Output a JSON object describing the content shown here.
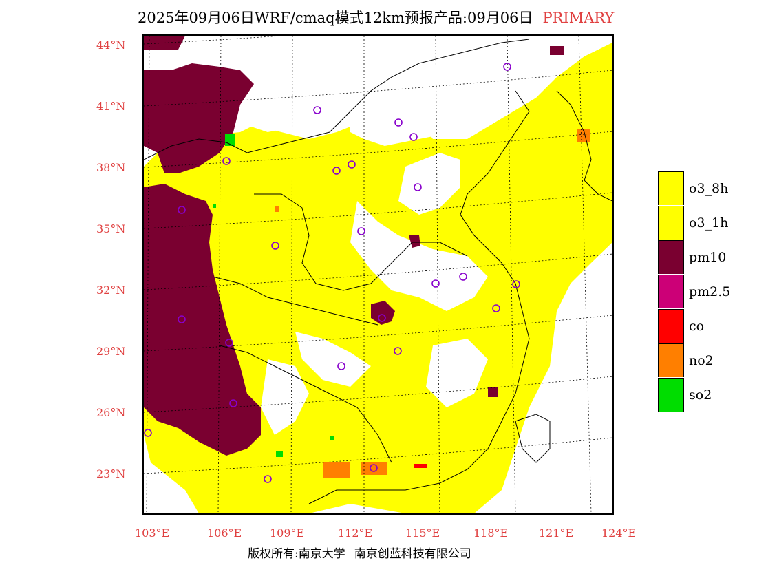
{
  "title": {
    "main": "2025年09月06日WRF/cmaq模式12km预报产品:09月06日",
    "tag": "PRIMARY"
  },
  "axes": {
    "lat_labels": [
      "44°N",
      "41°N",
      "38°N",
      "35°N",
      "32°N",
      "29°N",
      "26°N",
      "23°N"
    ],
    "lon_labels": [
      "103°E",
      "106°E",
      "109°E",
      "112°E",
      "115°E",
      "118°E",
      "121°E",
      "124°E"
    ]
  },
  "legend": {
    "items": [
      {
        "label": "o3_8h",
        "color": "#ffff00"
      },
      {
        "label": "o3_1h",
        "color": "#ffff00"
      },
      {
        "label": "pm10",
        "color": "#7a0030"
      },
      {
        "label": "pm2.5",
        "color": "#cc0077"
      },
      {
        "label": "co",
        "color": "#ff0000"
      },
      {
        "label": "no2",
        "color": "#ff7f00"
      },
      {
        "label": "so2",
        "color": "#00dd00"
      }
    ]
  },
  "footer": {
    "left": "版权所有:南京大学",
    "right": "南京创蓝科技有限公司"
  },
  "colors": {
    "yellow": "#ffff00",
    "maroon": "#7a0030",
    "orange": "#ff7f00",
    "green": "#00dd00",
    "red": "#ff0000",
    "station": "#8800cc",
    "label": "#e04040"
  }
}
